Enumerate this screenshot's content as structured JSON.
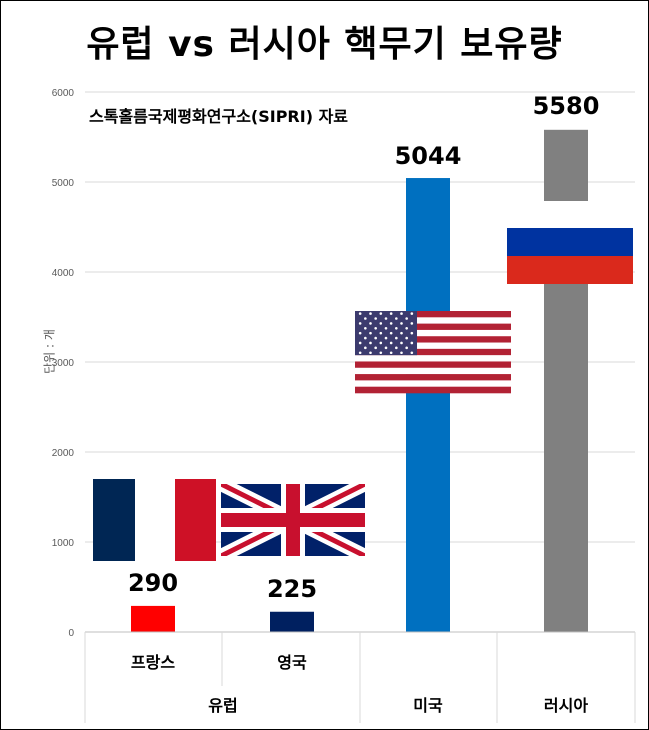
{
  "title": "유럽 vs 러시아 핵무기 보유량",
  "source_note": "스톡홀름국제평화연구소(SIPRI) 자료",
  "colors": {
    "france_bar": "#ff0000",
    "uk_bar": "#002060",
    "us_bar": "#0070c0",
    "russia_bar": "#808080",
    "gridline": "#d9d9d9"
  },
  "chart_data": {
    "type": "bar",
    "title": "유럽 vs 러시아 핵무기 보유량",
    "ylabel": "단위 : 개",
    "xlabel": "",
    "ylim": [
      0,
      6000
    ],
    "yticks": [
      "0",
      "1000",
      "2000",
      "3000",
      "4000",
      "5000",
      "6000"
    ],
    "grid": true,
    "categories": [
      "프랑스",
      "영국",
      "미국",
      "러시아"
    ],
    "values": [
      290,
      225,
      5044,
      5580
    ],
    "value_labels": [
      "290",
      "225",
      "5044",
      "5580"
    ],
    "groups": [
      {
        "label": "유럽",
        "members": [
          "프랑스",
          "영국"
        ]
      },
      {
        "label": "미국",
        "members": [
          "미국"
        ]
      },
      {
        "label": "러시아",
        "members": [
          "러시아"
        ]
      }
    ],
    "category_flags": [
      "france-flag-icon",
      "uk-flag-icon",
      "us-flag-icon",
      "russia-flag-icon"
    ]
  }
}
